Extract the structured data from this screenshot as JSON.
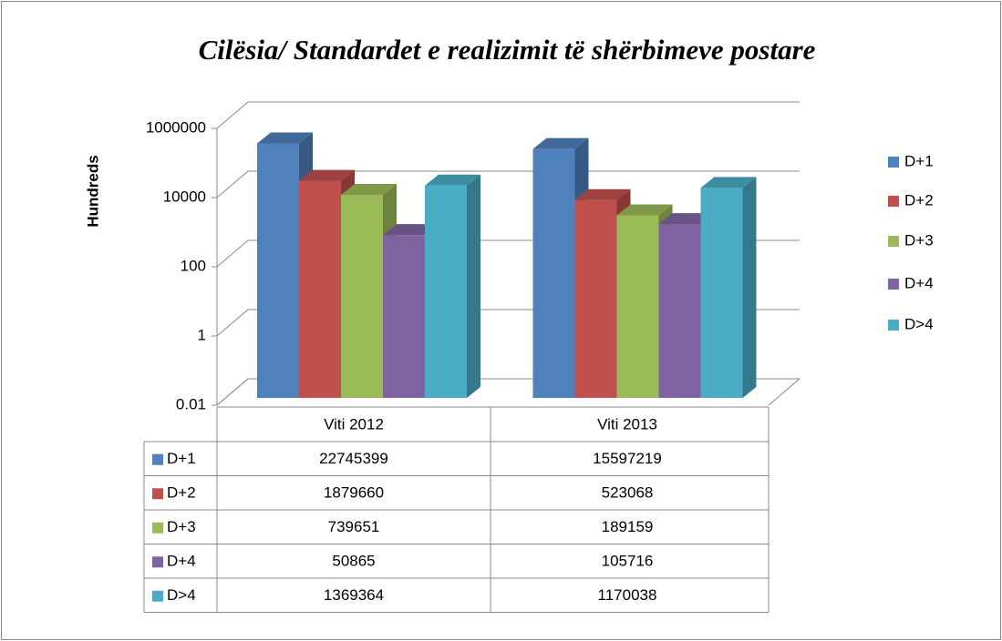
{
  "chart_data": {
    "type": "bar3d",
    "title": "Cilësia/ Standardet e realizimit të shërbimeve postare",
    "y_label": "Hundreds",
    "categories": [
      "Viti 2012",
      "Viti 2013"
    ],
    "series": [
      {
        "name": "D+1",
        "color": "#4f81bd",
        "values": [
          227453.99,
          155972.19
        ],
        "value_labels": [
          "22745399",
          "15597219"
        ]
      },
      {
        "name": "D+2",
        "color": "#c0504d",
        "values": [
          18796.6,
          5230.68
        ],
        "value_labels": [
          "1879660",
          "523068"
        ]
      },
      {
        "name": "D+3",
        "color": "#9bbb59",
        "values": [
          7396.51,
          1891.59
        ],
        "value_labels": [
          "739651",
          "189159"
        ]
      },
      {
        "name": "D+4",
        "color": "#8064a2",
        "values": [
          508.65,
          1057.16
        ],
        "value_labels": [
          "50865",
          "105716"
        ]
      },
      {
        "name": "D>4",
        "color": "#4bacc6",
        "values": [
          13693.64,
          11700.38
        ],
        "value_labels": [
          "1369364",
          "1170038"
        ]
      }
    ],
    "log_scale": true,
    "ylim": [
      0.01,
      1000000
    ],
    "yticks": [
      0.01,
      1,
      100,
      10000,
      1000000
    ],
    "grid": true,
    "legend": "right",
    "data_table": true
  }
}
